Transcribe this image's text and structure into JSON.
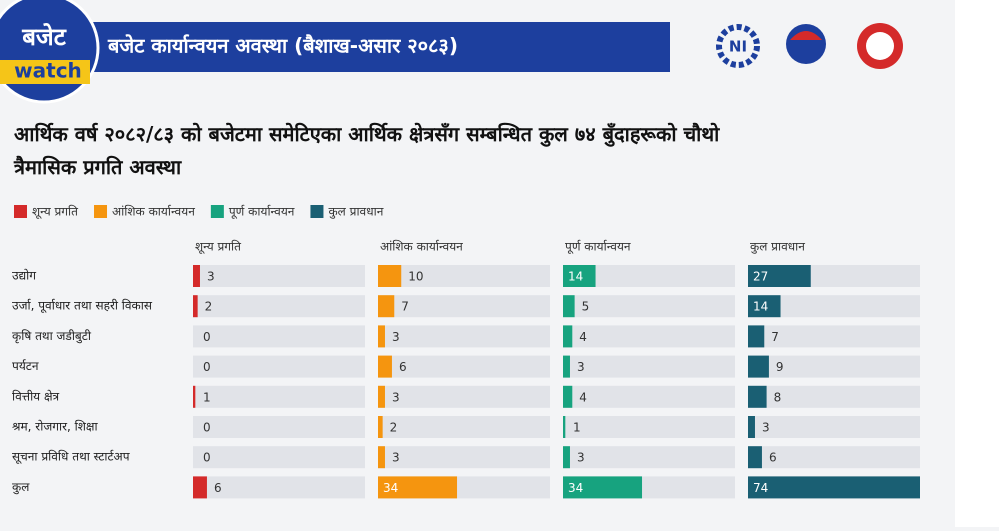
{
  "brand": {
    "line1": "बजेट",
    "line2": "watch"
  },
  "header": {
    "title": "बजेट कार्यान्वयन अवस्था (बैशाख-असार २०८३)"
  },
  "logos": {
    "ni": "NI"
  },
  "chart_data": {
    "type": "bar",
    "title": "आर्थिक वर्ष २०८२/८३ को बजेटमा समेटिएका आर्थिक क्षेत्रसँग सम्बन्धित कुल ७४ बुँदाहरूको चौथो त्रैमासिक प्रगति अवस्था",
    "categories": [
      "उद्योग",
      "उर्जा, पूर्वाधार तथा सहरी विकास",
      "कृषि तथा जडीबुटी",
      "पर्यटन",
      "वित्तीय क्षेत्र",
      "श्रम, रोजगार, शिक्षा",
      "सूचना प्रविधि तथा स्टार्टअप",
      "कुल"
    ],
    "series": [
      {
        "name": "शून्य प्रगति",
        "color": "#d42a2a",
        "values": [
          3,
          2,
          0,
          0,
          1,
          0,
          0,
          6
        ]
      },
      {
        "name": "आंशिक कार्यान्वयन",
        "color": "#f5950f",
        "values": [
          10,
          7,
          3,
          6,
          3,
          2,
          3,
          34
        ]
      },
      {
        "name": "पूर्ण कार्यान्वयन",
        "color": "#17a37f",
        "values": [
          14,
          5,
          4,
          3,
          4,
          1,
          3,
          34
        ]
      },
      {
        "name": "कुल प्रावधान",
        "color": "#1a5f73",
        "values": [
          27,
          14,
          7,
          9,
          8,
          3,
          6,
          74
        ]
      }
    ]
  }
}
